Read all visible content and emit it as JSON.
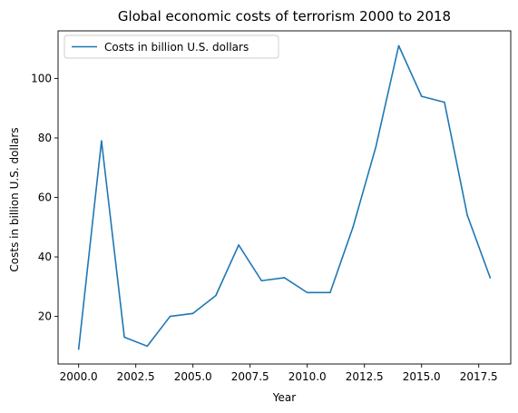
{
  "chart_data": {
    "type": "line",
    "title": "Global economic costs of terrorism 2000 to 2018",
    "xlabel": "Year",
    "ylabel": "Costs in billion U.S. dollars",
    "x": [
      2000,
      2001,
      2002,
      2003,
      2004,
      2005,
      2006,
      2007,
      2008,
      2009,
      2010,
      2011,
      2012,
      2013,
      2014,
      2015,
      2016,
      2017,
      2018
    ],
    "series": [
      {
        "name": "Costs in billion U.S. dollars",
        "color": "#1f77b4",
        "values": [
          9,
          79,
          13,
          10,
          20,
          21,
          27,
          44,
          32,
          33,
          28,
          28,
          50,
          77,
          111,
          94,
          92,
          54,
          33
        ]
      }
    ],
    "xlim": [
      1999.1,
      2018.9
    ],
    "ylim": [
      4,
      116
    ],
    "x_ticks": [
      2000.0,
      2002.5,
      2005.0,
      2007.5,
      2010.0,
      2012.5,
      2015.0,
      2017.5
    ],
    "x_tick_labels": [
      "2000.0",
      "2002.5",
      "2005.0",
      "2007.5",
      "2010.0",
      "2012.5",
      "2015.0",
      "2017.5"
    ],
    "y_ticks": [
      20,
      40,
      60,
      80,
      100
    ],
    "y_tick_labels": [
      "20",
      "40",
      "60",
      "80",
      "100"
    ],
    "grid": false,
    "legend_position": "top-left"
  }
}
